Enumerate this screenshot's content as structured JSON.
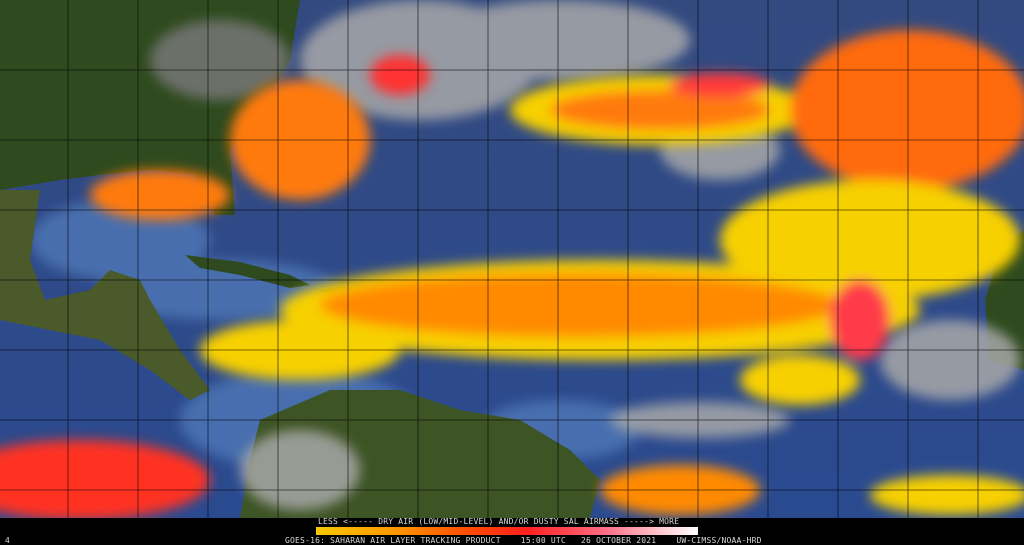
{
  "legend": {
    "title": "LESS <----- DRY AIR (LOW/MID-LEVEL) AND/OR DUSTY SAL AIRMASS -----> MORE",
    "colorbar_colors": [
      "#f7c800",
      "#ff9a00",
      "#ff4a00",
      "#ff1f1f",
      "#ff6a80",
      "#ffc8d0",
      "#ffffff"
    ]
  },
  "footer": {
    "frame_number": "4",
    "product": "GOES-16: SAHARAN AIR LAYER TRACKING PRODUCT",
    "time": "15:00 UTC",
    "date": "26 OCTOBER 2021",
    "credit": "UW-CIMSS/NOAA-HRD"
  },
  "colors": {
    "ocean": "#2f4b8a",
    "land": "#2f4a1e",
    "cloud": "#9a9a9a",
    "sal_low": "#f7d000",
    "sal_mid": "#ff7a00",
    "sal_high": "#ff2a2a"
  }
}
